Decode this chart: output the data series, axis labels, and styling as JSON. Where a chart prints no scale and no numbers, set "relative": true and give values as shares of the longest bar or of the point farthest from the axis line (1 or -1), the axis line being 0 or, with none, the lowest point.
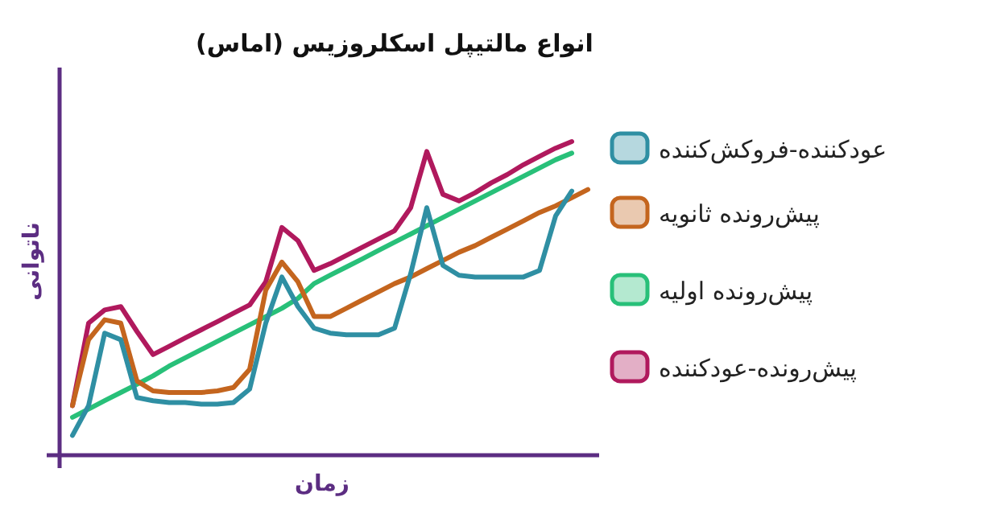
{
  "chart_data": {
    "type": "line",
    "relative": true,
    "title": "انواع مالتیپل اسکلروزیس (اماس)",
    "xlabel": "زمان",
    "ylabel": "ناتوانی",
    "legend": "right",
    "categories": [
      null,
      null,
      null,
      null,
      null,
      null,
      null,
      null,
      null,
      null,
      null,
      null,
      null,
      null,
      null,
      null,
      null,
      null,
      null,
      null,
      null,
      null,
      null,
      null,
      null,
      null,
      null,
      null,
      null,
      null,
      null,
      null,
      null
    ],
    "series": [
      {
        "name": "عودکننده-فروکش‌کننده",
        "color": "#2f8fa3",
        "values": [
          0.063,
          0.158,
          0.389,
          0.368,
          0.184,
          0.174,
          0.168,
          0.168,
          0.163,
          0.163,
          0.168,
          0.211,
          0.421,
          0.568,
          0.474,
          0.405,
          0.389,
          0.384,
          0.384,
          0.384,
          0.405,
          0.579,
          0.789,
          0.605,
          0.574,
          0.568,
          0.568,
          0.568,
          0.568,
          0.589,
          0.763,
          0.842,
          null
        ]
      },
      {
        "name": "پیش‌رونده ثانویه",
        "color": "#c4651e",
        "values": [
          0.158,
          0.368,
          0.432,
          0.421,
          0.237,
          0.205,
          0.2,
          0.2,
          0.2,
          0.205,
          0.216,
          0.274,
          0.526,
          0.616,
          0.553,
          0.442,
          0.442,
          0.468,
          0.495,
          0.521,
          0.547,
          0.568,
          0.595,
          0.621,
          0.647,
          0.668,
          0.695,
          0.721,
          0.747,
          0.774,
          0.795,
          0.821,
          0.847
        ]
      },
      {
        "name": "پیش‌رونده اولیه",
        "color": "#28c079",
        "values": [
          0.121,
          0.147,
          0.174,
          0.2,
          0.226,
          0.253,
          0.284,
          0.311,
          0.337,
          0.363,
          0.389,
          0.416,
          0.442,
          0.468,
          0.5,
          0.547,
          0.574,
          0.6,
          0.626,
          0.653,
          0.679,
          0.705,
          0.732,
          0.758,
          0.784,
          0.811,
          0.837,
          0.863,
          0.889,
          0.916,
          0.942,
          0.963,
          null
        ]
      },
      {
        "name": "پیش‌رونده-عودکننده",
        "color": "#b0195d",
        "values": [
          0.158,
          0.421,
          0.463,
          0.474,
          0.395,
          0.321,
          0.347,
          0.374,
          0.4,
          0.426,
          0.453,
          0.479,
          0.553,
          0.726,
          0.684,
          0.589,
          0.611,
          0.637,
          0.663,
          0.689,
          0.716,
          0.789,
          0.968,
          0.832,
          0.811,
          0.837,
          0.868,
          0.895,
          0.926,
          0.953,
          0.979,
          1.0,
          null
        ]
      }
    ]
  }
}
